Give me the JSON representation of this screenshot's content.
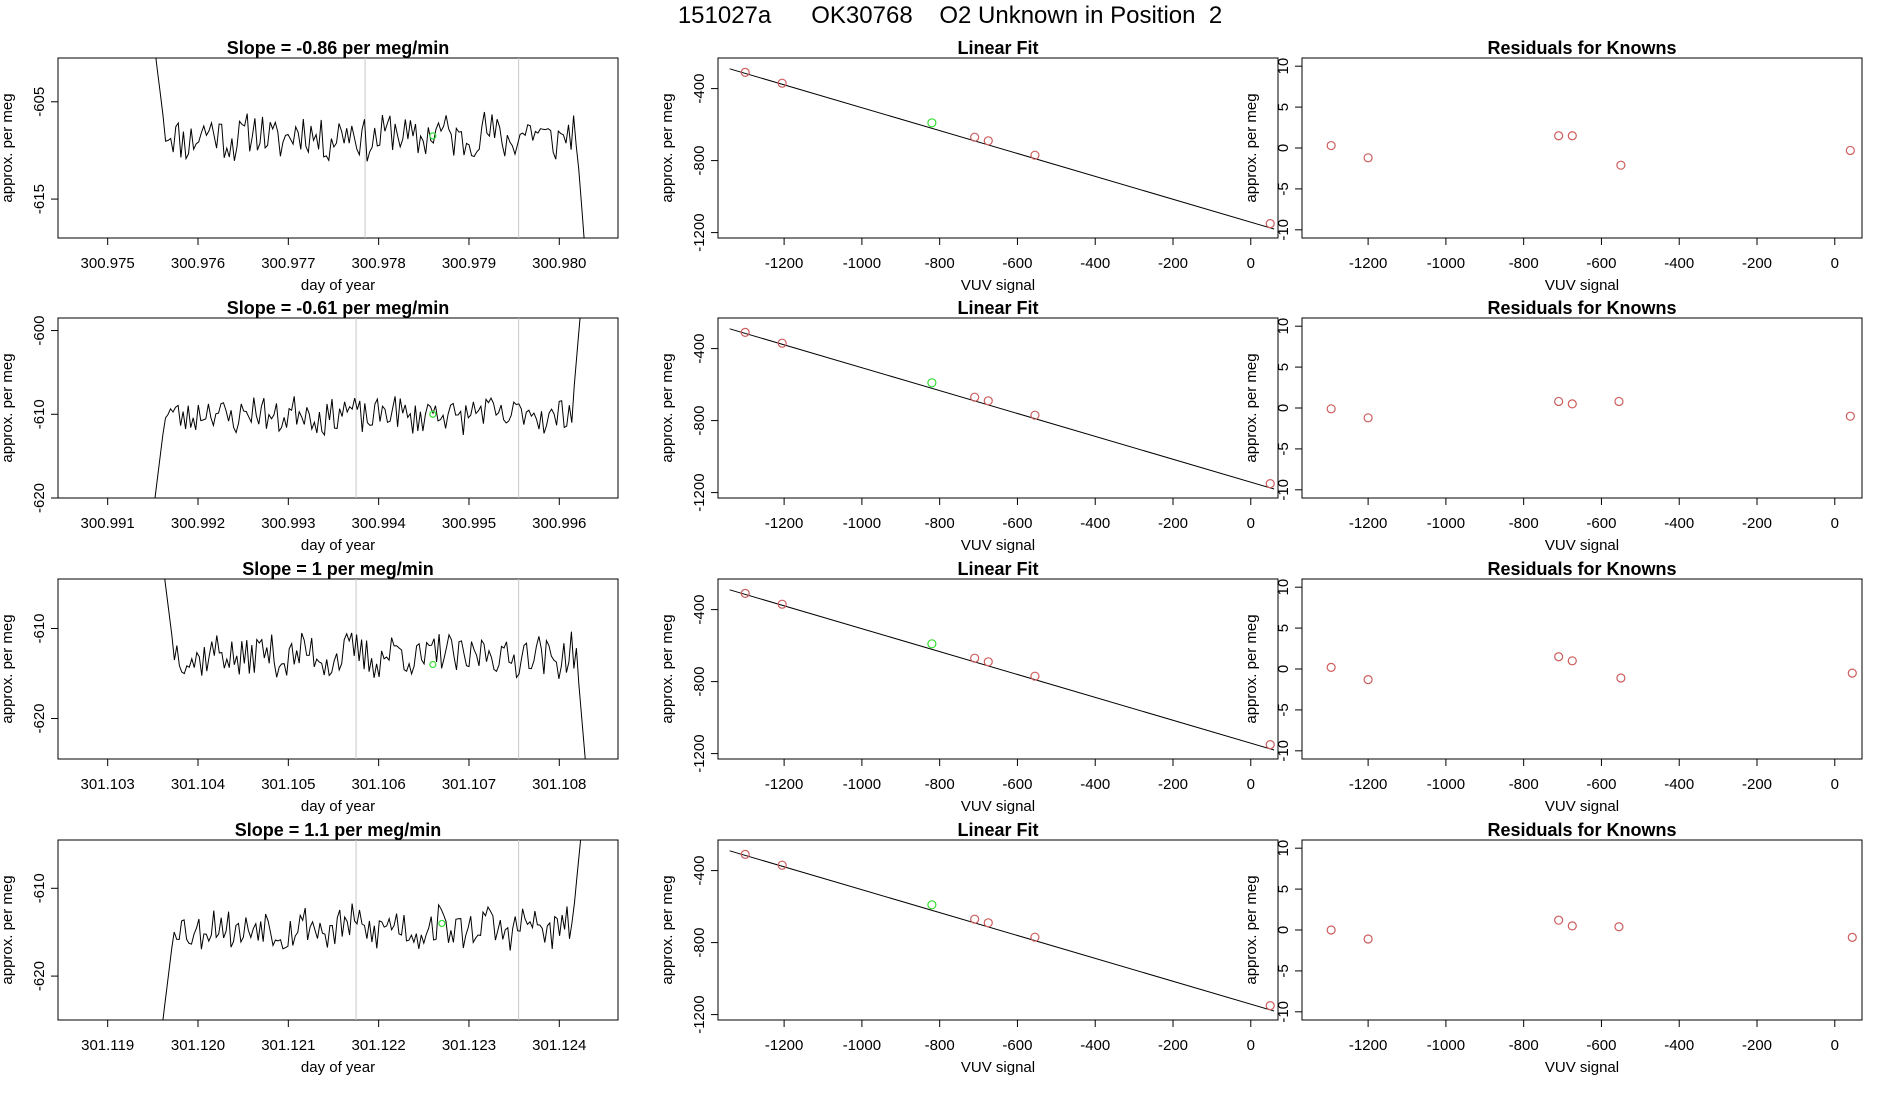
{
  "figure": {
    "title": "151027a      OK30768    O2 Unknown in Position  2",
    "colors": {
      "line": "#000000",
      "axis": "#000000",
      "marker_red": "#cd5c5c",
      "marker_green": "#33dd33",
      "vline": "#c8c8c8"
    }
  },
  "chart_data": [
    {
      "type": "line",
      "row": 0,
      "col": 0,
      "title": "Slope =  -0.86  per meg/min",
      "xlabel": "day of year",
      "ylabel": "approx. per meg",
      "xlim": [
        300.97445,
        300.98065
      ],
      "ylim": [
        -619,
        -600.5
      ],
      "xticks": [
        300.975,
        300.976,
        300.977,
        300.978,
        300.979,
        300.98
      ],
      "xtick_labels": [
        "300.975",
        "300.976",
        "300.977",
        "300.978",
        "300.979",
        "300.980"
      ],
      "yticks": [
        -615,
        -605
      ],
      "ytick_labels": [
        "-615",
        "-605"
      ],
      "vlines": [
        300.97785,
        300.97955
      ],
      "green_point": {
        "x": 300.9786,
        "y": -608.5
      },
      "signal": {
        "x_start": 300.9755,
        "x_end": 300.9803,
        "baseline": -608.5,
        "lead_in_start": -598,
        "tail_end": -622,
        "noise": 2.2,
        "seed": 11
      }
    },
    {
      "type": "scatter",
      "row": 0,
      "col": 1,
      "title": "Linear Fit",
      "xlabel": "VUV signal",
      "ylabel": "approx. per meg",
      "xlim": [
        -1370,
        70
      ],
      "ylim": [
        -1230,
        -230
      ],
      "xticks": [
        -1200,
        -1000,
        -800,
        -600,
        -400,
        -200,
        0
      ],
      "xtick_labels": [
        "-1200",
        "-1000",
        "-800",
        "-600",
        "-400",
        "-200",
        "0"
      ],
      "yticks": [
        -1200,
        -800,
        -400
      ],
      "ytick_labels": [
        "-1200",
        "-800",
        "-400"
      ],
      "fit_line": {
        "x1": -1340,
        "y1": -290,
        "x2": 60,
        "y2": -1180
      },
      "points": [
        {
          "x": -1300,
          "y": -310,
          "color": "red"
        },
        {
          "x": -1205,
          "y": -370,
          "color": "red"
        },
        {
          "x": -820,
          "y": -590,
          "color": "green"
        },
        {
          "x": -710,
          "y": -670,
          "color": "red"
        },
        {
          "x": -675,
          "y": -690,
          "color": "red"
        },
        {
          "x": -555,
          "y": -770,
          "color": "red"
        },
        {
          "x": 50,
          "y": -1150,
          "color": "red"
        }
      ]
    },
    {
      "type": "scatter",
      "row": 0,
      "col": 2,
      "title": "Residuals for Knowns",
      "xlabel": "VUV signal",
      "ylabel": "approx. per meg",
      "xlim": [
        -1370,
        70
      ],
      "ylim": [
        -11,
        11
      ],
      "xticks": [
        -1200,
        -1000,
        -800,
        -600,
        -400,
        -200,
        0
      ],
      "xtick_labels": [
        "-1200",
        "-1000",
        "-800",
        "-600",
        "-400",
        "-200",
        "0"
      ],
      "yticks": [
        -10,
        -5,
        0,
        5,
        10
      ],
      "ytick_labels": [
        "-10",
        "-5",
        "0",
        "5",
        "10"
      ],
      "points": [
        {
          "x": -1295,
          "y": 0.3,
          "color": "red"
        },
        {
          "x": -1200,
          "y": -1.2,
          "color": "red"
        },
        {
          "x": -710,
          "y": 1.5,
          "color": "red"
        },
        {
          "x": -675,
          "y": 1.5,
          "color": "red"
        },
        {
          "x": -550,
          "y": -2.1,
          "color": "red"
        },
        {
          "x": 40,
          "y": -0.3,
          "color": "red"
        }
      ]
    },
    {
      "type": "line",
      "row": 1,
      "col": 0,
      "title": "Slope =  -0.61  per meg/min",
      "xlabel": "day of year",
      "ylabel": "approx. per meg",
      "xlim": [
        300.99045,
        300.99665
      ],
      "ylim": [
        -620,
        -598.5
      ],
      "xticks": [
        300.991,
        300.992,
        300.993,
        300.994,
        300.995,
        300.996
      ],
      "xtick_labels": [
        "300.991",
        "300.992",
        "300.993",
        "300.994",
        "300.995",
        "300.996"
      ],
      "yticks": [
        -620,
        -610,
        -600
      ],
      "ytick_labels": [
        "-620",
        "-610",
        "-600"
      ],
      "vlines": [
        300.99375,
        300.99555
      ],
      "green_point": {
        "x": 300.9946,
        "y": -610
      },
      "signal": {
        "x_start": 300.9915,
        "x_end": 300.99625,
        "baseline": -610,
        "lead_in_start": -622,
        "tail_end": -596,
        "noise": 2.0,
        "seed": 23
      }
    },
    {
      "type": "scatter",
      "row": 1,
      "col": 1,
      "title": "Linear Fit",
      "xlabel": "VUV signal",
      "ylabel": "approx. per meg",
      "xlim": [
        -1370,
        70
      ],
      "ylim": [
        -1230,
        -230
      ],
      "xticks": [
        -1200,
        -1000,
        -800,
        -600,
        -400,
        -200,
        0
      ],
      "xtick_labels": [
        "-1200",
        "-1000",
        "-800",
        "-600",
        "-400",
        "-200",
        "0"
      ],
      "yticks": [
        -1200,
        -800,
        -400
      ],
      "ytick_labels": [
        "-1200",
        "-800",
        "-400"
      ],
      "fit_line": {
        "x1": -1340,
        "y1": -290,
        "x2": 60,
        "y2": -1180
      },
      "points": [
        {
          "x": -1300,
          "y": -310,
          "color": "red"
        },
        {
          "x": -1205,
          "y": -370,
          "color": "red"
        },
        {
          "x": -820,
          "y": -590,
          "color": "green"
        },
        {
          "x": -710,
          "y": -670,
          "color": "red"
        },
        {
          "x": -675,
          "y": -690,
          "color": "red"
        },
        {
          "x": -555,
          "y": -770,
          "color": "red"
        },
        {
          "x": 50,
          "y": -1150,
          "color": "red"
        }
      ]
    },
    {
      "type": "scatter",
      "row": 1,
      "col": 2,
      "title": "Residuals for Knowns",
      "xlabel": "VUV signal",
      "ylabel": "approx. per meg",
      "xlim": [
        -1370,
        70
      ],
      "ylim": [
        -11,
        11
      ],
      "xticks": [
        -1200,
        -1000,
        -800,
        -600,
        -400,
        -200,
        0
      ],
      "xtick_labels": [
        "-1200",
        "-1000",
        "-800",
        "-600",
        "-400",
        "-200",
        "0"
      ],
      "yticks": [
        -10,
        -5,
        0,
        5,
        10
      ],
      "ytick_labels": [
        "-10",
        "-5",
        "0",
        "5",
        "10"
      ],
      "points": [
        {
          "x": -1295,
          "y": -0.1,
          "color": "red"
        },
        {
          "x": -1200,
          "y": -1.2,
          "color": "red"
        },
        {
          "x": -710,
          "y": 0.8,
          "color": "red"
        },
        {
          "x": -675,
          "y": 0.5,
          "color": "red"
        },
        {
          "x": -555,
          "y": 0.8,
          "color": "red"
        },
        {
          "x": 40,
          "y": -1.0,
          "color": "red"
        }
      ]
    },
    {
      "type": "line",
      "row": 2,
      "col": 0,
      "title": "Slope =  1  per meg/min",
      "xlabel": "day of year",
      "ylabel": "approx. per meg",
      "xlim": [
        301.10245,
        301.10865
      ],
      "ylim": [
        -624.5,
        -604.5
      ],
      "xticks": [
        301.103,
        301.104,
        301.105,
        301.106,
        301.107,
        301.108
      ],
      "xtick_labels": [
        "301.103",
        "301.104",
        "301.105",
        "301.106",
        "301.107",
        "301.108"
      ],
      "yticks": [
        -620,
        -610
      ],
      "ytick_labels": [
        "-620",
        "-610"
      ],
      "vlines": [
        301.10575,
        301.10755
      ],
      "green_point": {
        "x": 301.1066,
        "y": -614
      },
      "signal": {
        "x_start": 301.1036,
        "x_end": 301.1083,
        "baseline": -613,
        "lead_in_start": -602,
        "tail_end": -626,
        "noise": 2.2,
        "seed": 37
      }
    },
    {
      "type": "scatter",
      "row": 2,
      "col": 1,
      "title": "Linear Fit",
      "xlabel": "VUV signal",
      "ylabel": "approx. per meg",
      "xlim": [
        -1370,
        70
      ],
      "ylim": [
        -1230,
        -230
      ],
      "xticks": [
        -1200,
        -1000,
        -800,
        -600,
        -400,
        -200,
        0
      ],
      "xtick_labels": [
        "-1200",
        "-1000",
        "-800",
        "-600",
        "-400",
        "-200",
        "0"
      ],
      "yticks": [
        -1200,
        -800,
        -400
      ],
      "ytick_labels": [
        "-1200",
        "-800",
        "-400"
      ],
      "fit_line": {
        "x1": -1340,
        "y1": -290,
        "x2": 60,
        "y2": -1180
      },
      "points": [
        {
          "x": -1300,
          "y": -310,
          "color": "red"
        },
        {
          "x": -1205,
          "y": -370,
          "color": "red"
        },
        {
          "x": -820,
          "y": -590,
          "color": "green"
        },
        {
          "x": -710,
          "y": -670,
          "color": "red"
        },
        {
          "x": -675,
          "y": -690,
          "color": "red"
        },
        {
          "x": -555,
          "y": -770,
          "color": "red"
        },
        {
          "x": 50,
          "y": -1150,
          "color": "red"
        }
      ]
    },
    {
      "type": "scatter",
      "row": 2,
      "col": 2,
      "title": "Residuals for Knowns",
      "xlabel": "VUV signal",
      "ylabel": "approx. per meg",
      "xlim": [
        -1370,
        70
      ],
      "ylim": [
        -11,
        11
      ],
      "xticks": [
        -1200,
        -1000,
        -800,
        -600,
        -400,
        -200,
        0
      ],
      "xtick_labels": [
        "-1200",
        "-1000",
        "-800",
        "-600",
        "-400",
        "-200",
        "0"
      ],
      "yticks": [
        -10,
        -5,
        0,
        5,
        10
      ],
      "ytick_labels": [
        "-10",
        "-5",
        "0",
        "5",
        "10"
      ],
      "points": [
        {
          "x": -1295,
          "y": 0.2,
          "color": "red"
        },
        {
          "x": -1200,
          "y": -1.3,
          "color": "red"
        },
        {
          "x": -710,
          "y": 1.5,
          "color": "red"
        },
        {
          "x": -675,
          "y": 1.0,
          "color": "red"
        },
        {
          "x": -550,
          "y": -1.1,
          "color": "red"
        },
        {
          "x": 45,
          "y": -0.5,
          "color": "red"
        }
      ]
    },
    {
      "type": "line",
      "row": 3,
      "col": 0,
      "title": "Slope =  1.1  per meg/min",
      "xlabel": "day of year",
      "ylabel": "approx. per meg",
      "xlim": [
        301.11845,
        301.12465
      ],
      "ylim": [
        -625,
        -604.5
      ],
      "xticks": [
        301.119,
        301.12,
        301.121,
        301.122,
        301.123,
        301.124
      ],
      "xtick_labels": [
        "301.119",
        "301.120",
        "301.121",
        "301.122",
        "301.123",
        "301.124"
      ],
      "yticks": [
        -620,
        -610
      ],
      "ytick_labels": [
        "-620",
        "-610"
      ],
      "vlines": [
        301.12175,
        301.12355
      ],
      "green_point": {
        "x": 301.1227,
        "y": -614
      },
      "signal": {
        "x_start": 301.1196,
        "x_end": 301.12425,
        "baseline": -614.5,
        "lead_in_start": -626,
        "tail_end": -603,
        "noise": 2.2,
        "seed": 53
      }
    },
    {
      "type": "scatter",
      "row": 3,
      "col": 1,
      "title": "Linear Fit",
      "xlabel": "VUV signal",
      "ylabel": "approx. per meg",
      "xlim": [
        -1370,
        70
      ],
      "ylim": [
        -1230,
        -230
      ],
      "xticks": [
        -1200,
        -1000,
        -800,
        -600,
        -400,
        -200,
        0
      ],
      "xtick_labels": [
        "-1200",
        "-1000",
        "-800",
        "-600",
        "-400",
        "-200",
        "0"
      ],
      "yticks": [
        -1200,
        -800,
        -400
      ],
      "ytick_labels": [
        "-1200",
        "-800",
        "-400"
      ],
      "fit_line": {
        "x1": -1340,
        "y1": -290,
        "x2": 60,
        "y2": -1180
      },
      "points": [
        {
          "x": -1300,
          "y": -310,
          "color": "red"
        },
        {
          "x": -1205,
          "y": -370,
          "color": "red"
        },
        {
          "x": -820,
          "y": -590,
          "color": "green"
        },
        {
          "x": -710,
          "y": -670,
          "color": "red"
        },
        {
          "x": -675,
          "y": -690,
          "color": "red"
        },
        {
          "x": -555,
          "y": -770,
          "color": "red"
        },
        {
          "x": 50,
          "y": -1150,
          "color": "red"
        }
      ]
    },
    {
      "type": "scatter",
      "row": 3,
      "col": 2,
      "title": "Residuals for Knowns",
      "xlabel": "VUV signal",
      "ylabel": "approx. per meg",
      "xlim": [
        -1370,
        70
      ],
      "ylim": [
        -11,
        11
      ],
      "xticks": [
        -1200,
        -1000,
        -800,
        -600,
        -400,
        -200,
        0
      ],
      "xtick_labels": [
        "-1200",
        "-1000",
        "-800",
        "-600",
        "-400",
        "-200",
        "0"
      ],
      "yticks": [
        -10,
        -5,
        0,
        5,
        10
      ],
      "ytick_labels": [
        "-10",
        "-5",
        "0",
        "5",
        "10"
      ],
      "points": [
        {
          "x": -1295,
          "y": 0.0,
          "color": "red"
        },
        {
          "x": -1200,
          "y": -1.1,
          "color": "red"
        },
        {
          "x": -710,
          "y": 1.2,
          "color": "red"
        },
        {
          "x": -675,
          "y": 0.5,
          "color": "red"
        },
        {
          "x": -555,
          "y": 0.4,
          "color": "red"
        },
        {
          "x": 45,
          "y": -0.9,
          "color": "red"
        }
      ]
    }
  ]
}
